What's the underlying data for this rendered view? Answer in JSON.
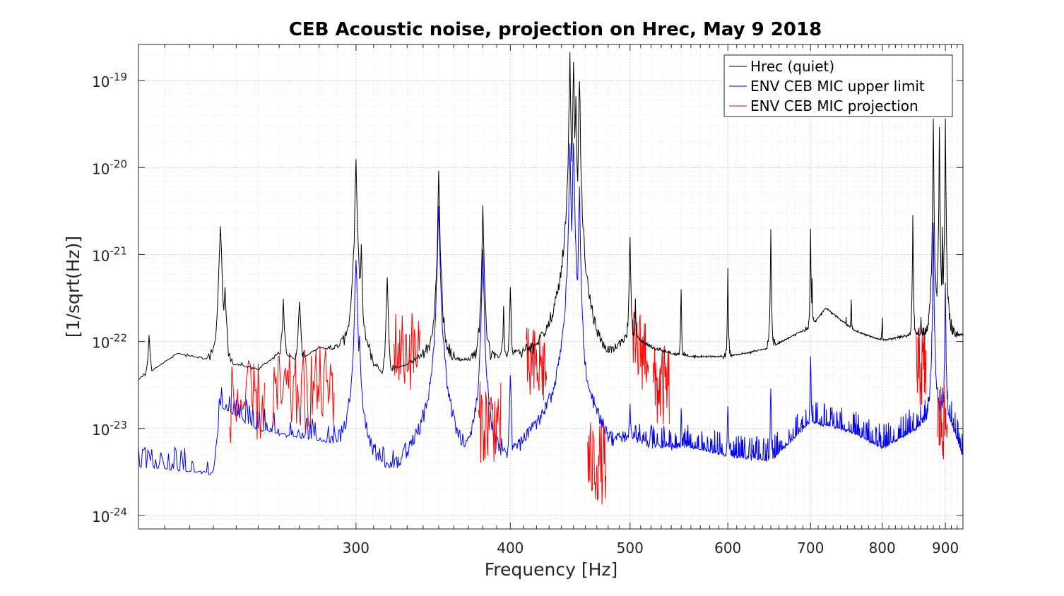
{
  "chart_data": {
    "type": "line",
    "title": "CEB Acoustic noise, projection on Hrec, May 9 2018",
    "xlabel": "Frequency [Hz]",
    "ylabel": "[1/sqrt(Hz)]",
    "xscale": "log",
    "yscale": "log",
    "xlim": [
      200,
      930
    ],
    "ylim": [
      7e-25,
      2.6e-19
    ],
    "xticks": [
      300,
      400,
      500,
      600,
      700,
      800,
      900
    ],
    "xtick_labels": [
      "300",
      "400",
      "500",
      "600",
      "700",
      "800",
      "900"
    ],
    "yticks": [
      {
        "value": 1e-24,
        "base": "10",
        "exp": "-24"
      },
      {
        "value": 1e-23,
        "base": "10",
        "exp": "-23"
      },
      {
        "value": 1e-22,
        "base": "10",
        "exp": "-22"
      },
      {
        "value": 1e-21,
        "base": "10",
        "exp": "-21"
      },
      {
        "value": 1e-20,
        "base": "10",
        "exp": "-20"
      },
      {
        "value": 1e-19,
        "base": "10",
        "exp": "-19"
      }
    ],
    "grid": true,
    "legend_position": "top-right",
    "series": [
      {
        "name": "Hrec (quiet)",
        "color": "#000000",
        "baseline": [
          [
            200,
            3e-23
          ],
          [
            215,
            6e-23
          ],
          [
            230,
            5e-23
          ],
          [
            250,
            4e-23
          ],
          [
            260,
            6e-23
          ],
          [
            270,
            5e-23
          ],
          [
            280,
            7e-23
          ],
          [
            300,
            6e-23
          ],
          [
            315,
            3.5e-23
          ],
          [
            330,
            4.5e-23
          ],
          [
            345,
            6e-23
          ],
          [
            360,
            5e-23
          ],
          [
            380,
            5e-23
          ],
          [
            400,
            5.5e-23
          ],
          [
            420,
            5e-23
          ],
          [
            440,
            6e-23
          ],
          [
            460,
            5e-23
          ],
          [
            480,
            4.5e-23
          ],
          [
            500,
            1e-22
          ],
          [
            520,
            7e-23
          ],
          [
            540,
            6e-23
          ],
          [
            560,
            5.5e-23
          ],
          [
            600,
            5.5e-23
          ],
          [
            650,
            7e-23
          ],
          [
            680,
            1e-22
          ],
          [
            700,
            1.2e-22
          ],
          [
            720,
            2e-22
          ],
          [
            760,
            1.1e-22
          ],
          [
            800,
            8.5e-23
          ],
          [
            850,
            1e-22
          ],
          [
            900,
            9e-23
          ],
          [
            930,
            1e-22
          ]
        ],
        "peaks": [
          [
            204,
            1e-22
          ],
          [
            212,
            6e-23
          ],
          [
            233,
            2.2e-21
          ],
          [
            235,
            5e-22
          ],
          [
            262,
            3e-22
          ],
          [
            270,
            3.5e-22
          ],
          [
            300,
            1.1e-20
          ],
          [
            303,
            1.4e-21
          ],
          [
            318,
            5e-22
          ],
          [
            350,
            8e-21
          ],
          [
            352,
            6e-22
          ],
          [
            380,
            4e-21
          ],
          [
            395,
            2.5e-22
          ],
          [
            400,
            4e-22
          ],
          [
            430,
            8e-23
          ],
          [
            447,
            1.9e-19
          ],
          [
            450,
            1.6e-19
          ],
          [
            452,
            8e-20
          ],
          [
            455,
            1.2e-19
          ],
          [
            500,
            1.9e-21
          ],
          [
            505,
            3e-22
          ],
          [
            550,
            4e-22
          ],
          [
            600,
            6e-22
          ],
          [
            650,
            1.9e-21
          ],
          [
            700,
            1.9e-21
          ],
          [
            702,
            5e-22
          ],
          [
            748,
            2.2e-22
          ],
          [
            755,
            3.5e-22
          ],
          [
            800,
            2.2e-22
          ],
          [
            847,
            3e-21
          ],
          [
            860,
            2.2e-22
          ],
          [
            880,
            3.5e-20
          ],
          [
            890,
            3e-20
          ],
          [
            895,
            2.5e-21
          ],
          [
            900,
            3.4e-20
          ]
        ]
      },
      {
        "name": "ENV CEB MIC upper limit",
        "color": "#0000ff",
        "baseline": [
          [
            200,
            3e-24
          ],
          [
            230,
            2.5e-24
          ],
          [
            233,
            1.5e-23
          ],
          [
            250,
            8e-24
          ],
          [
            280,
            6e-24
          ],
          [
            300,
            5e-24
          ],
          [
            320,
            2.5e-24
          ],
          [
            340,
            4e-24
          ],
          [
            360,
            3e-24
          ],
          [
            380,
            6e-24
          ],
          [
            400,
            3e-24
          ],
          [
            420,
            6e-24
          ],
          [
            440,
            8e-24
          ],
          [
            460,
            5e-24
          ],
          [
            480,
            3e-24
          ],
          [
            500,
            6e-24
          ],
          [
            520,
            5e-24
          ],
          [
            560,
            5e-24
          ],
          [
            600,
            4e-24
          ],
          [
            650,
            3.5e-24
          ],
          [
            700,
            1e-23
          ],
          [
            750,
            8e-24
          ],
          [
            800,
            5e-24
          ],
          [
            850,
            8e-24
          ],
          [
            900,
            1.5e-23
          ],
          [
            930,
            4e-24
          ]
        ],
        "peaks": [
          [
            233,
            1.6e-23
          ],
          [
            300,
            9e-22
          ],
          [
            302,
            1.3e-22
          ],
          [
            350,
            4e-21
          ],
          [
            380,
            1.2e-21
          ],
          [
            400,
            4e-23
          ],
          [
            447,
            1.7e-20
          ],
          [
            450,
            2e-20
          ],
          [
            455,
            5e-21
          ],
          [
            500,
            2e-23
          ],
          [
            550,
            1.6e-23
          ],
          [
            600,
            2e-23
          ],
          [
            650,
            3e-23
          ],
          [
            700,
            7e-23
          ],
          [
            880,
            2.5e-21
          ],
          [
            900,
            5e-22
          ]
        ]
      },
      {
        "name": "ENV CEB MIC projection",
        "color": "#ff0000",
        "segments": [
          [
            245,
            2e-23
          ],
          [
            265,
            2.5e-23
          ],
          [
            280,
            3e-23
          ],
          [
            330,
            8e-23
          ],
          [
            385,
            1.2e-23
          ],
          [
            420,
            5e-23
          ],
          [
            470,
            4e-24
          ],
          [
            510,
            8e-23
          ],
          [
            530,
            3e-23
          ],
          [
            860,
            5e-23
          ],
          [
            895,
            1.2e-23
          ]
        ]
      }
    ]
  }
}
